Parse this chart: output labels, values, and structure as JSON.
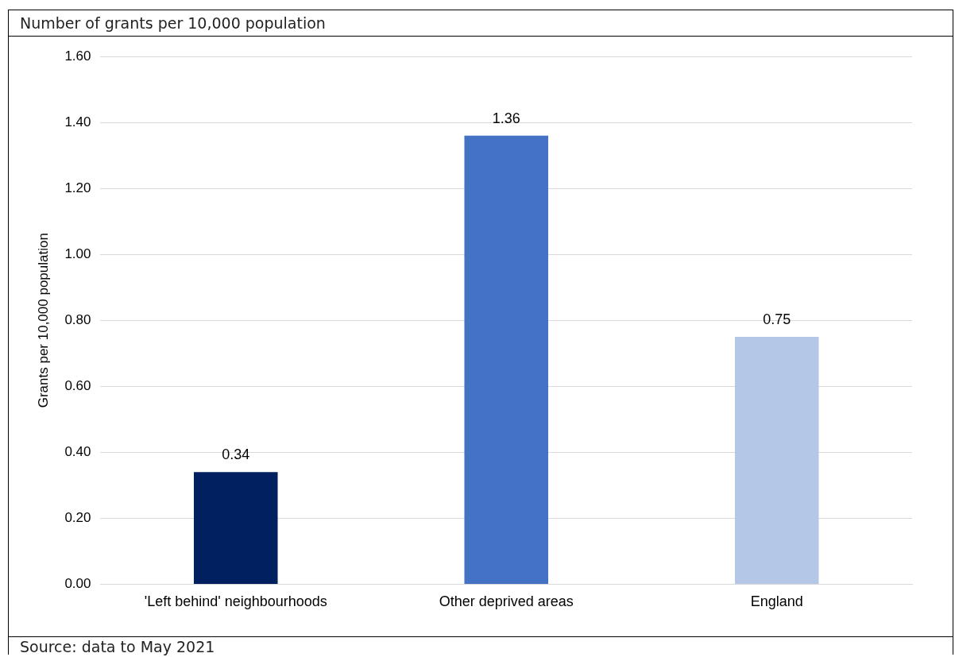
{
  "chart_data": {
    "type": "bar",
    "title": "Number of grants per 10,000 population",
    "ylabel": "Grants per 10,000 population",
    "categories": [
      "'Left behind' neighbourhoods",
      "Other deprived areas",
      "England"
    ],
    "values": [
      0.34,
      1.36,
      0.75
    ],
    "colors": [
      "#002060",
      "#4472c4",
      "#b4c7e7"
    ],
    "ylim": [
      0,
      1.6
    ],
    "yticks": [
      {
        "value": 0,
        "label": "0.00"
      },
      {
        "value": 0.2,
        "label": "0.20"
      },
      {
        "value": 0.4,
        "label": "0.40"
      },
      {
        "value": 0.6,
        "label": "0.60"
      },
      {
        "value": 0.8,
        "label": "0.80"
      },
      {
        "value": 1,
        "label": "1.00"
      },
      {
        "value": 1.2,
        "label": "1.20"
      },
      {
        "value": 1.4,
        "label": "1.40"
      },
      {
        "value": 1.6,
        "label": "1.60"
      }
    ],
    "grid": "y",
    "data_labels": true,
    "legend": false,
    "annotations": [
      "Source: data to May 2021"
    ]
  }
}
